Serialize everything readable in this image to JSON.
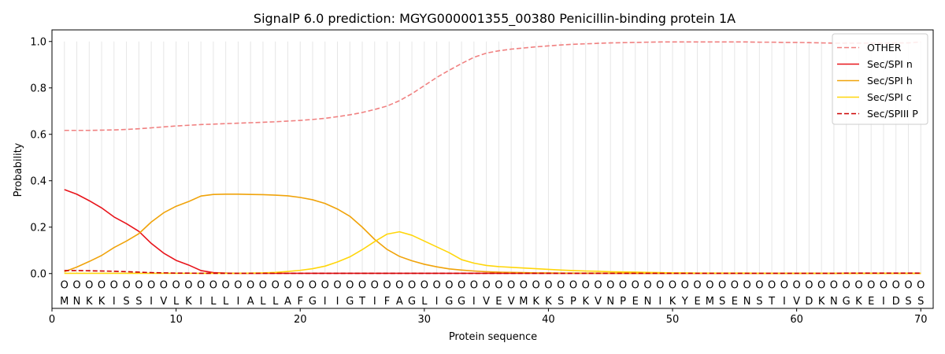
{
  "chart_data": {
    "type": "line",
    "title": "SignalP 6.0 prediction: MGYG000001355_00380 Penicillin-binding protein 1A",
    "xlabel": "Protein sequence",
    "ylabel": "Probability",
    "xlim": [
      0,
      71
    ],
    "ylim": [
      -0.15,
      1.05
    ],
    "xticks": [
      0,
      10,
      20,
      30,
      40,
      50,
      60,
      70
    ],
    "yticks": [
      0.0,
      0.2,
      0.4,
      0.6,
      0.8,
      1.0
    ],
    "xtick_labels": [
      "0",
      "10",
      "20",
      "30",
      "40",
      "50",
      "60",
      "70"
    ],
    "ytick_labels": [
      "0.0",
      "0.2",
      "0.4",
      "0.6",
      "0.8",
      "1.0"
    ],
    "legend_position": "upper-right",
    "sequence": [
      "M",
      "N",
      "K",
      "K",
      "I",
      "S",
      "S",
      "I",
      "V",
      "L",
      "K",
      "I",
      "L",
      "L",
      "I",
      "A",
      "L",
      "L",
      "A",
      "F",
      "G",
      "I",
      "I",
      "G",
      "T",
      "I",
      "F",
      "A",
      "G",
      "L",
      "I",
      "G",
      "G",
      "I",
      "V",
      "E",
      "V",
      "M",
      "K",
      "K",
      "S",
      "P",
      "K",
      "V",
      "N",
      "P",
      "E",
      "N",
      "I",
      "K",
      "Y",
      "E",
      "M",
      "S",
      "E",
      "N",
      "S",
      "T",
      "I",
      "V",
      "D",
      "K",
      "N",
      "G",
      "K",
      "E",
      "I",
      "D",
      "S",
      "S"
    ],
    "region_marker": "O",
    "series": [
      {
        "name": "OTHER",
        "color": "#f08080",
        "dash": true,
        "values": [
          0.617,
          0.617,
          0.617,
          0.618,
          0.619,
          0.621,
          0.624,
          0.628,
          0.632,
          0.636,
          0.639,
          0.642,
          0.644,
          0.646,
          0.648,
          0.65,
          0.652,
          0.654,
          0.657,
          0.66,
          0.664,
          0.669,
          0.676,
          0.684,
          0.694,
          0.707,
          0.722,
          0.745,
          0.775,
          0.81,
          0.845,
          0.876,
          0.905,
          0.932,
          0.95,
          0.96,
          0.967,
          0.972,
          0.977,
          0.981,
          0.985,
          0.988,
          0.99,
          0.992,
          0.994,
          0.995,
          0.996,
          0.997,
          0.998,
          0.998,
          0.998,
          0.998,
          0.998,
          0.998,
          0.998,
          0.998,
          0.997,
          0.997,
          0.996,
          0.996,
          0.995,
          0.994,
          0.993,
          0.993,
          0.993,
          0.993,
          0.993,
          0.994,
          0.994,
          0.998
        ]
      },
      {
        "name": "Sec/SPI n",
        "color": "#e8141b",
        "dash": false,
        "values": [
          0.362,
          0.342,
          0.314,
          0.283,
          0.244,
          0.215,
          0.182,
          0.13,
          0.088,
          0.057,
          0.037,
          0.013,
          0.004,
          0.002,
          0.001,
          0.001,
          0.001,
          0.001,
          0.001,
          0.001,
          0.001,
          0.001,
          0.001,
          0.001,
          0.001,
          0.001,
          0.001,
          0.001,
          0.001,
          0.001,
          0.001,
          0.001,
          0.001,
          0.001,
          0.001,
          0.001,
          0.001,
          0.001,
          0.001,
          0.001,
          0.001,
          0.001,
          0.001,
          0.001,
          0.001,
          0.001,
          0.001,
          0.001,
          0.001,
          0.001,
          0.001,
          0.001,
          0.001,
          0.001,
          0.001,
          0.001,
          0.001,
          0.001,
          0.001,
          0.001,
          0.001,
          0.001,
          0.001,
          0.001,
          0.001,
          0.001,
          0.001,
          0.001,
          0.001,
          0.001
        ]
      },
      {
        "name": "Sec/SPI h",
        "color": "#f0a30a",
        "dash": false,
        "values": [
          0.008,
          0.028,
          0.052,
          0.078,
          0.112,
          0.14,
          0.172,
          0.222,
          0.262,
          0.29,
          0.31,
          0.334,
          0.341,
          0.342,
          0.342,
          0.341,
          0.34,
          0.338,
          0.335,
          0.328,
          0.318,
          0.302,
          0.278,
          0.247,
          0.2,
          0.147,
          0.104,
          0.074,
          0.055,
          0.04,
          0.029,
          0.02,
          0.015,
          0.011,
          0.008,
          0.006,
          0.005,
          0.004,
          0.003,
          0.003,
          0.002,
          0.002,
          0.002,
          0.002,
          0.002,
          0.002,
          0.001,
          0.001,
          0.001,
          0.001,
          0.001,
          0.001,
          0.001,
          0.001,
          0.001,
          0.001,
          0.001,
          0.001,
          0.001,
          0.001,
          0.001,
          0.001,
          0.001,
          0.001,
          0.001,
          0.001,
          0.001,
          0.001,
          0.001,
          0.001
        ]
      },
      {
        "name": "Sec/SPI c",
        "color": "#ffd60a",
        "dash": false,
        "values": [
          0.001,
          0.001,
          0.001,
          0.001,
          0.001,
          0.001,
          0.001,
          0.001,
          0.001,
          0.001,
          0.001,
          0.001,
          0.001,
          0.001,
          0.001,
          0.002,
          0.003,
          0.005,
          0.009,
          0.014,
          0.021,
          0.032,
          0.05,
          0.072,
          0.103,
          0.138,
          0.17,
          0.18,
          0.165,
          0.14,
          0.115,
          0.09,
          0.06,
          0.045,
          0.035,
          0.03,
          0.027,
          0.024,
          0.021,
          0.018,
          0.015,
          0.013,
          0.011,
          0.01,
          0.008,
          0.007,
          0.006,
          0.005,
          0.004,
          0.003,
          0.003,
          0.002,
          0.002,
          0.002,
          0.002,
          0.002,
          0.001,
          0.001,
          0.001,
          0.001,
          0.001,
          0.001,
          0.001,
          0.001,
          0.001,
          0.001,
          0.001,
          0.001,
          0.001,
          0.001
        ]
      },
      {
        "name": "Sec/SPIII P",
        "color": "#cc0000",
        "dash": true,
        "values": [
          0.013,
          0.013,
          0.012,
          0.011,
          0.01,
          0.008,
          0.006,
          0.004,
          0.003,
          0.002,
          0.002,
          0.001,
          0.001,
          0.001,
          0.001,
          0.001,
          0.001,
          0.001,
          0.001,
          0.001,
          0.001,
          0.001,
          0.001,
          0.001,
          0.001,
          0.001,
          0.001,
          0.001,
          0.001,
          0.001,
          0.001,
          0.001,
          0.001,
          0.001,
          0.001,
          0.001,
          0.001,
          0.001,
          0.001,
          0.001,
          0.001,
          0.001,
          0.001,
          0.001,
          0.001,
          0.001,
          0.001,
          0.001,
          0.001,
          0.001,
          0.001,
          0.001,
          0.001,
          0.001,
          0.001,
          0.001,
          0.001,
          0.001,
          0.001,
          0.001,
          0.001,
          0.001,
          0.001,
          0.002,
          0.002,
          0.002,
          0.002,
          0.002,
          0.002,
          0.002
        ]
      }
    ]
  }
}
